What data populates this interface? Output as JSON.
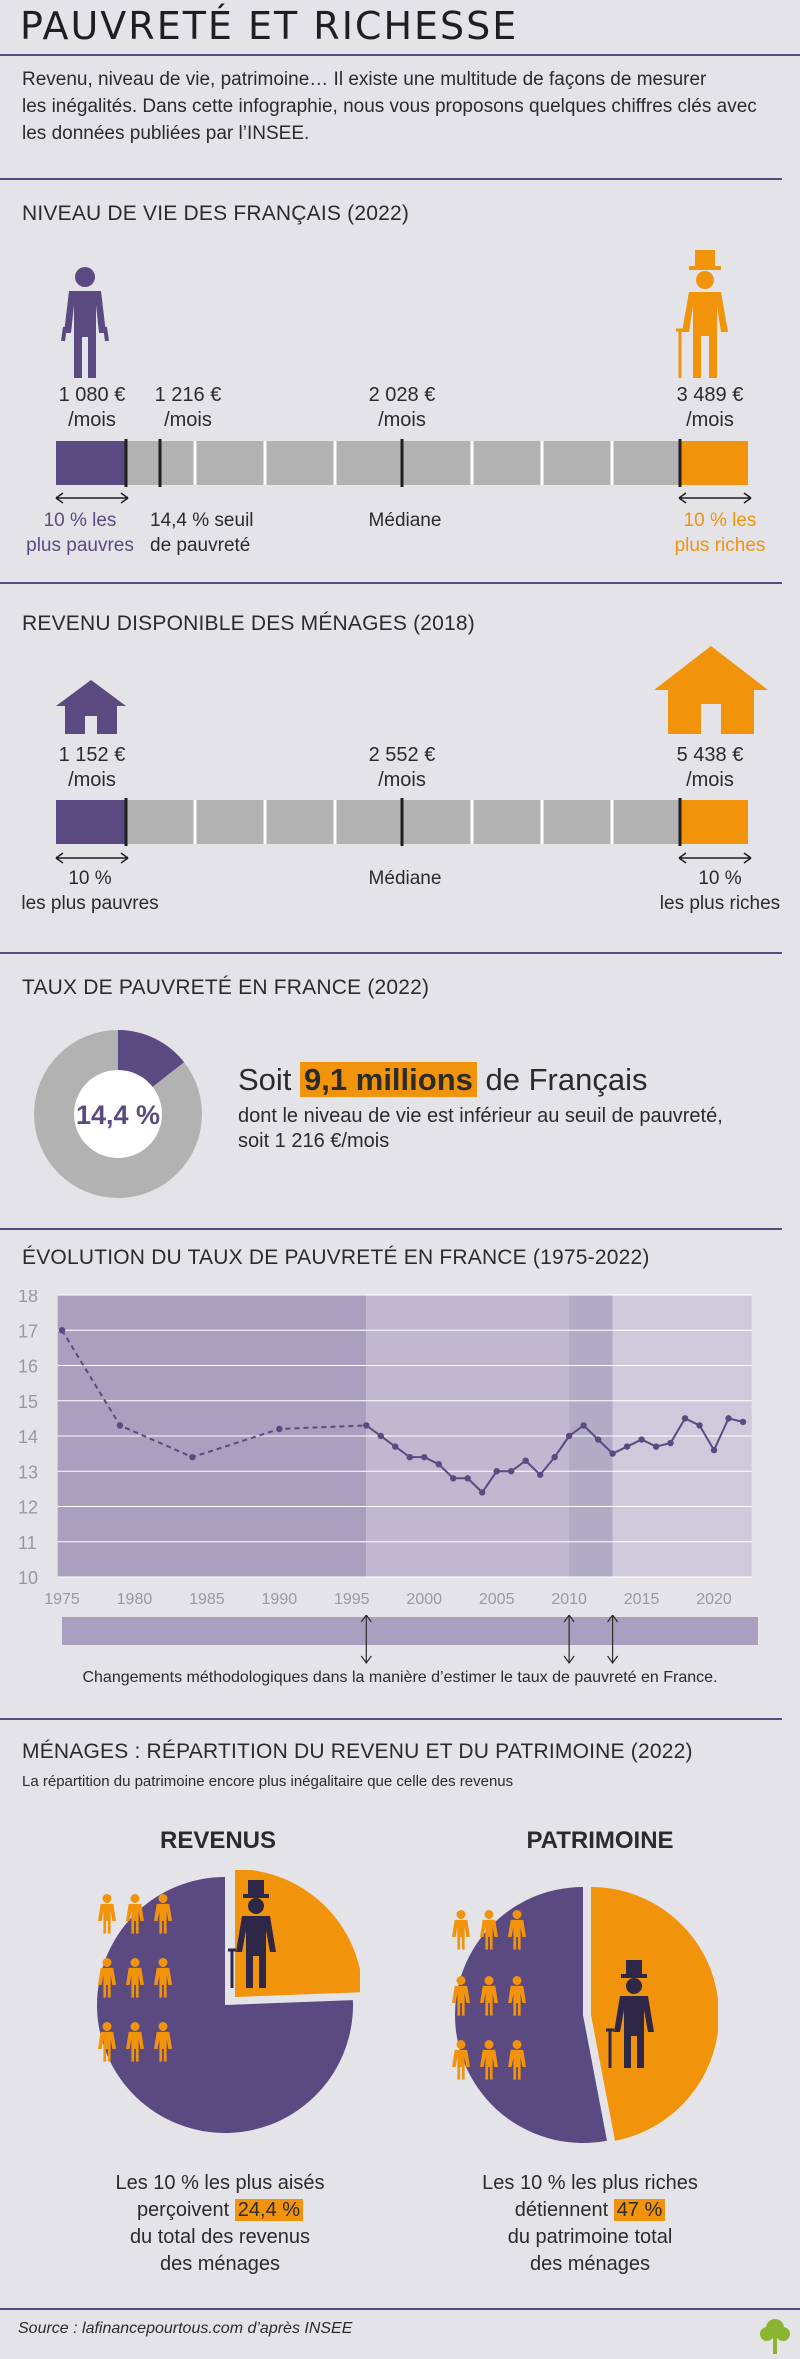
{
  "title": "PAUVRETÉ ET RICHESSE",
  "intro": [
    "Revenu, niveau de vie, patrimoine… Il existe une multitude de façons de mesurer",
    "les inégalités. Dans cette infographie, nous vous proposons quelques chiffres clés avec",
    "les données publiées par l’INSEE."
  ],
  "niveau": {
    "title": "NIVEAU DE VIE DES FRANÇAIS (2022)",
    "labels": [
      {
        "amount": "1 080 €",
        "unit": "/mois"
      },
      {
        "amount": "1 216 €",
        "unit": "/mois"
      },
      {
        "amount": "2 028 €",
        "unit": "/mois"
      },
      {
        "amount": "3 489 €",
        "unit": "/mois"
      }
    ],
    "captions": {
      "poor": [
        "10 % les",
        "plus pauvres"
      ],
      "seuil": [
        "14,4 % seuil",
        "de pauvreté"
      ],
      "median": "Médiane",
      "rich": [
        "10 % les",
        "plus riches"
      ]
    }
  },
  "revenu": {
    "title": "REVENU DISPONIBLE DES MÉNAGES (2018)",
    "labels": [
      {
        "amount": "1 152 €",
        "unit": "/mois"
      },
      {
        "amount": "2 552 €",
        "unit": "/mois"
      },
      {
        "amount": "5 438 €",
        "unit": "/mois"
      }
    ],
    "captions": {
      "poor": [
        "10 %",
        "les plus pauvres"
      ],
      "median": "Médiane",
      "rich": [
        "10 %",
        "les plus riches"
      ]
    }
  },
  "taux": {
    "title": "TAUX DE PAUVRETÉ EN FRANCE (2022)",
    "donut_label": "14,4 %",
    "donut_value": 14.4,
    "soit": "Soit",
    "millions": "9,1 millions",
    "de_francais": "de Français",
    "line2": "dont le niveau de vie est inférieur au seuil de pauvreté,",
    "line3": "soit 1 216 €/mois"
  },
  "evolution": {
    "title": "ÉVOLUTION DU TAUX DE PAUVRETÉ EN FRANCE (1975-2022)",
    "note": "Changements méthodologiques dans la manière d’estimer le taux de pauvreté en France."
  },
  "chart_data": {
    "type": "line",
    "title": "ÉVOLUTION DU TAUX DE PAUVRETÉ EN FRANCE (1975-2022)",
    "xlabel": "",
    "ylabel": "",
    "ylim": [
      10,
      18
    ],
    "xlim": [
      1975,
      2022
    ],
    "y_ticks": [
      10,
      11,
      12,
      13,
      14,
      15,
      16,
      17,
      18
    ],
    "x_ticks": [
      1975,
      1980,
      1985,
      1990,
      1995,
      2000,
      2005,
      2010,
      2015,
      2020
    ],
    "series": [
      {
        "x": [
          1975,
          1979,
          1984,
          1990,
          1996,
          1997,
          1998,
          1999,
          2000,
          2001,
          2002,
          2003,
          2004,
          2005,
          2006,
          2007,
          2008,
          2009,
          2010,
          2011,
          2012,
          2013,
          2014,
          2015,
          2016,
          2017,
          2018,
          2019,
          2020,
          2021,
          2022
        ],
        "values": [
          17.0,
          14.3,
          13.4,
          14.2,
          14.3,
          14.0,
          13.7,
          13.4,
          13.4,
          13.2,
          12.8,
          12.8,
          12.4,
          13.0,
          13.0,
          13.3,
          12.9,
          13.4,
          14.0,
          14.3,
          13.9,
          13.5,
          13.7,
          13.9,
          13.7,
          13.8,
          14.5,
          14.3,
          13.6,
          14.5,
          14.4
        ]
      }
    ],
    "breaks": [
      1996,
      2010,
      2013
    ]
  },
  "menages": {
    "title": "MÉNAGES : RÉPARTITION DU REVENU ET DU PATRIMOINE (2022)",
    "subtitle": "La répartition du patrimoine encore plus inégalitaire que celle des revenus",
    "revenus": {
      "title": "REVENUS",
      "value": 24.4,
      "line1": "Les 10 % les plus aisés",
      "line2_pre": "perçoivent",
      "line2_hl": "24,4 %",
      "line3": "du total des revenus",
      "line4": "des ménages"
    },
    "patrimoine": {
      "title": "PATRIMOINE",
      "value": 47,
      "line1": "Les 10 % les plus riches",
      "line2_pre": "détiennent",
      "line2_hl": "47 %",
      "line3": "du patrimoine total",
      "line4": "des ménages"
    }
  },
  "source": "Source : lafinancepourtous.com d’après INSEE",
  "colors": {
    "purple": "#5b4a82",
    "orange": "#f2930c",
    "grey": "#b2b2b2",
    "bg": "#e4e3e8"
  }
}
